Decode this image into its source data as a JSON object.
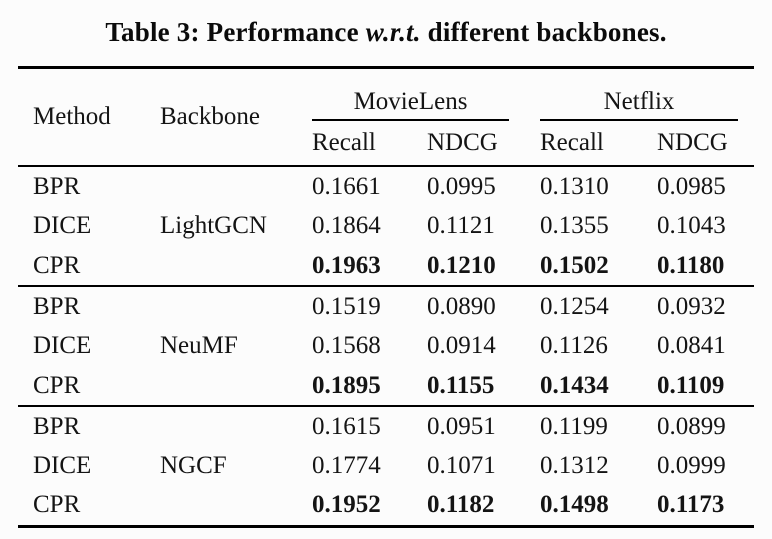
{
  "title": {
    "prefix": "Table 3: Performance ",
    "emph": "w.r.t.",
    "suffix": " different backbones."
  },
  "table": {
    "headers": {
      "method": "Method",
      "backbone": "Backbone",
      "group1": "MovieLens",
      "group2": "Netflix",
      "sub": [
        "Recall",
        "NDCG",
        "Recall",
        "NDCG"
      ]
    },
    "groups": [
      {
        "backbone": "LightGCN",
        "rows": [
          {
            "method": "BPR",
            "values": [
              "0.1661",
              "0.0995",
              "0.1310",
              "0.0985"
            ]
          },
          {
            "method": "DICE",
            "values": [
              "0.1864",
              "0.1121",
              "0.1355",
              "0.1043"
            ]
          },
          {
            "method": "CPR",
            "values": [
              "0.1963",
              "0.1210",
              "0.1502",
              "0.1180"
            ]
          }
        ]
      },
      {
        "backbone": "NeuMF",
        "rows": [
          {
            "method": "BPR",
            "values": [
              "0.1519",
              "0.0890",
              "0.1254",
              "0.0932"
            ]
          },
          {
            "method": "DICE",
            "values": [
              "0.1568",
              "0.0914",
              "0.1126",
              "0.0841"
            ]
          },
          {
            "method": "CPR",
            "values": [
              "0.1895",
              "0.1155",
              "0.1434",
              "0.1109"
            ]
          }
        ]
      },
      {
        "backbone": "NGCF",
        "rows": [
          {
            "method": "BPR",
            "values": [
              "0.1615",
              "0.0951",
              "0.1199",
              "0.0899"
            ]
          },
          {
            "method": "DICE",
            "values": [
              "0.1774",
              "0.1071",
              "0.1312",
              "0.0999"
            ]
          },
          {
            "method": "CPR",
            "values": [
              "0.1952",
              "0.1182",
              "0.1498",
              "0.1173"
            ]
          }
        ]
      }
    ],
    "bold_method": "CPR",
    "colors": {
      "background": "#fcfcfc",
      "text": "#121212",
      "rule": "#000000"
    }
  }
}
